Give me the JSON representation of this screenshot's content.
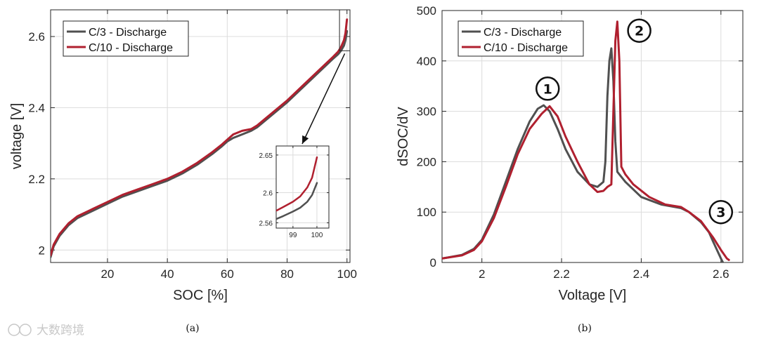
{
  "colors": {
    "c3": "#505050",
    "c10": "#b0202f",
    "grid": "#dcdcdc",
    "axis": "#262626"
  },
  "watermark": "大数跨境",
  "chart_data": [
    {
      "id": "a",
      "type": "line",
      "caption": "(a)",
      "xlabel": "SOC [%]",
      "ylabel": "voltage [V]",
      "xlim": [
        1,
        101
      ],
      "ylim": [
        1.965,
        2.675
      ],
      "xticks": [
        20,
        40,
        60,
        80,
        100
      ],
      "yticks": [
        2.0,
        2.2,
        2.4,
        2.6
      ],
      "ytick_labels": [
        "2",
        "2.2",
        "2.4",
        "2.6"
      ],
      "grid": true,
      "legend": [
        "C/3 - Discharge",
        "C/10 - Discharge"
      ],
      "legend_position": "top-left",
      "series": [
        {
          "name": "C/3 - Discharge",
          "color_key": "c3",
          "x": [
            1,
            2,
            4,
            7,
            10,
            15,
            20,
            25,
            30,
            35,
            40,
            45,
            50,
            55,
            58,
            60,
            62,
            65,
            68,
            70,
            75,
            80,
            85,
            90,
            95,
            97,
            98,
            99,
            99.5,
            100
          ],
          "y": [
            1.98,
            2.01,
            2.04,
            2.07,
            2.09,
            2.11,
            2.13,
            2.15,
            2.165,
            2.18,
            2.195,
            2.215,
            2.24,
            2.27,
            2.29,
            2.305,
            2.315,
            2.325,
            2.335,
            2.345,
            2.38,
            2.415,
            2.455,
            2.495,
            2.535,
            2.55,
            2.56,
            2.575,
            2.59,
            2.615
          ]
        },
        {
          "name": "C/10 - Discharge",
          "color_key": "c10",
          "x": [
            1,
            2,
            4,
            7,
            10,
            15,
            20,
            25,
            30,
            35,
            40,
            45,
            50,
            55,
            58,
            60,
            62,
            65,
            68,
            70,
            75,
            80,
            85,
            90,
            95,
            97,
            98,
            99,
            99.5,
            100
          ],
          "y": [
            1.985,
            2.015,
            2.045,
            2.075,
            2.095,
            2.115,
            2.135,
            2.155,
            2.17,
            2.185,
            2.2,
            2.22,
            2.245,
            2.275,
            2.295,
            2.31,
            2.325,
            2.335,
            2.34,
            2.35,
            2.385,
            2.42,
            2.46,
            2.5,
            2.54,
            2.557,
            2.57,
            2.59,
            2.61,
            2.648
          ]
        }
      ],
      "inset": {
        "xlim": [
          98.3,
          100.5
        ],
        "ylim": [
          2.553,
          2.662
        ],
        "xticks": [
          99,
          100
        ],
        "yticks": [
          2.56,
          2.6,
          2.65
        ],
        "ytick_labels": [
          "2.56",
          "2.6",
          "2.65"
        ],
        "series": [
          {
            "color_key": "c3",
            "x": [
              98.3,
              98.6,
              99.0,
              99.3,
              99.6,
              99.8,
              100
            ],
            "y": [
              2.565,
              2.569,
              2.575,
              2.58,
              2.588,
              2.597,
              2.613
            ]
          },
          {
            "color_key": "c10",
            "x": [
              98.3,
              98.6,
              99.0,
              99.3,
              99.6,
              99.8,
              100
            ],
            "y": [
              2.576,
              2.581,
              2.588,
              2.595,
              2.607,
              2.62,
              2.647
            ]
          }
        ]
      },
      "zoom_region": {
        "x": [
          97.5,
          101
        ],
        "y": [
          2.56,
          2.675
        ]
      }
    },
    {
      "id": "b",
      "type": "line",
      "caption": "(b)",
      "xlabel": "Voltage [V]",
      "ylabel": "dSOC/dV",
      "xlim": [
        1.9,
        2.655
      ],
      "ylim": [
        0,
        500
      ],
      "xticks": [
        2.0,
        2.2,
        2.4,
        2.6
      ],
      "xtick_labels": [
        "2",
        "2.2",
        "2.4",
        "2.6"
      ],
      "yticks": [
        0,
        100,
        200,
        300,
        400,
        500
      ],
      "grid": true,
      "legend": [
        "C/3 - Discharge",
        "C/10 - Discharge"
      ],
      "legend_position": "top-left",
      "series": [
        {
          "name": "C/3 - Discharge",
          "color_key": "c3",
          "x": [
            1.9,
            1.95,
            1.98,
            2.0,
            2.03,
            2.06,
            2.09,
            2.12,
            2.14,
            2.155,
            2.17,
            2.19,
            2.21,
            2.24,
            2.27,
            2.29,
            2.305,
            2.31,
            2.315,
            2.32,
            2.325,
            2.33,
            2.335,
            2.34,
            2.345,
            2.36,
            2.4,
            2.45,
            2.5,
            2.52,
            2.55,
            2.57,
            2.58,
            2.59,
            2.6,
            2.605
          ],
          "y": [
            8,
            15,
            27,
            45,
            95,
            160,
            225,
            280,
            305,
            312,
            300,
            265,
            225,
            180,
            155,
            150,
            160,
            200,
            330,
            400,
            425,
            360,
            240,
            180,
            175,
            160,
            130,
            115,
            108,
            100,
            80,
            60,
            42,
            25,
            8,
            0
          ]
        },
        {
          "name": "C/10 - Discharge",
          "color_key": "c10",
          "x": [
            1.9,
            1.95,
            1.98,
            2.0,
            2.03,
            2.06,
            2.09,
            2.12,
            2.15,
            2.17,
            2.19,
            2.21,
            2.24,
            2.27,
            2.29,
            2.305,
            2.315,
            2.325,
            2.33,
            2.335,
            2.34,
            2.345,
            2.35,
            2.36,
            2.38,
            2.42,
            2.46,
            2.5,
            2.52,
            2.55,
            2.58,
            2.6,
            2.615,
            2.62
          ],
          "y": [
            8,
            14,
            25,
            42,
            88,
            150,
            215,
            265,
            295,
            310,
            290,
            250,
            200,
            155,
            140,
            142,
            150,
            155,
            300,
            440,
            478,
            400,
            190,
            175,
            155,
            130,
            115,
            110,
            100,
            82,
            50,
            25,
            8,
            5
          ]
        }
      ],
      "annotations": [
        {
          "label": "1",
          "x": 2.165,
          "y": 345
        },
        {
          "label": "2",
          "x": 2.395,
          "y": 460
        },
        {
          "label": "3",
          "x": 2.6,
          "y": 100
        }
      ]
    }
  ]
}
